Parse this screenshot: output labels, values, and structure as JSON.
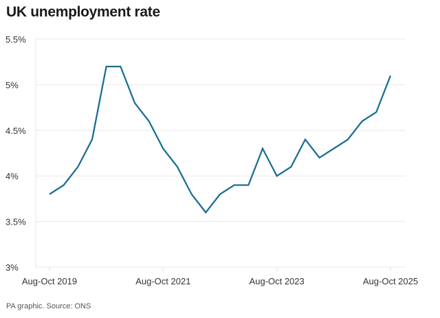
{
  "chart_data": {
    "type": "line",
    "title": "UK unemployment rate",
    "source": "PA graphic. Source: ONS",
    "xlabel": "",
    "ylabel": "",
    "ylim": [
      3,
      5.5
    ],
    "yticks": [
      3,
      3.5,
      4,
      4.5,
      5,
      5.5
    ],
    "ytick_labels": [
      "3%",
      "3.5%",
      "4%",
      "4.5%",
      "5%",
      "5.5%"
    ],
    "xtick_labels": [
      "Aug-Oct 2019",
      "Aug-Oct 2021",
      "Aug-Oct 2023",
      "Aug-Oct 2025"
    ],
    "xtick_indices": [
      0,
      8,
      16,
      24
    ],
    "grid": true,
    "line_color": "#1b6f93",
    "series": [
      {
        "values": [
          3.8,
          3.9,
          4.1,
          4.4,
          5.2,
          5.2,
          4.8,
          4.6,
          4.3,
          4.1,
          3.8,
          3.6,
          3.8,
          3.9,
          3.9,
          4.3,
          4.0,
          4.1,
          4.4,
          4.2,
          4.3,
          4.4,
          4.6,
          4.7,
          5.1
        ]
      }
    ]
  }
}
